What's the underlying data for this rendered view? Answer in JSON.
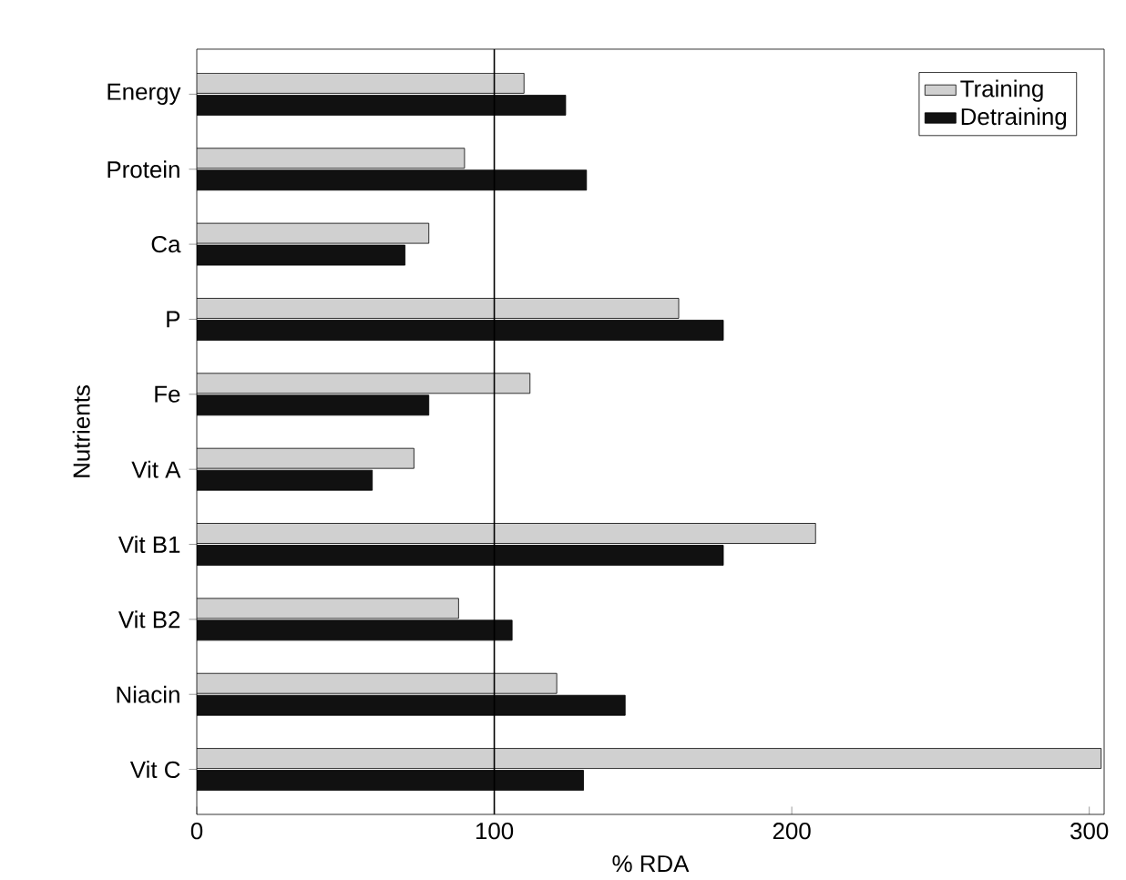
{
  "chart_data": {
    "type": "bar",
    "orientation": "horizontal",
    "ylabel": "Nutrients",
    "xlabel": "% RDA",
    "categories": [
      "Energy",
      "Protein",
      "Ca",
      "P",
      "Fe",
      "Vit A",
      "Vit B1",
      "Vit B2",
      "Niacin",
      "Vit C"
    ],
    "series": [
      {
        "name": "Training",
        "color": "#d0d0d0",
        "values": [
          110,
          90,
          78,
          162,
          112,
          73,
          208,
          88,
          121,
          304
        ]
      },
      {
        "name": "Detraining",
        "color": "#111111",
        "values": [
          124,
          131,
          70,
          177,
          78,
          59,
          177,
          106,
          144,
          130
        ]
      }
    ],
    "xlim": [
      0,
      305
    ],
    "xticks": [
      0,
      100,
      200,
      300
    ],
    "ref_lines": [
      {
        "axis": "x",
        "value": 100,
        "color": "#000000"
      }
    ],
    "legend": "top right"
  }
}
